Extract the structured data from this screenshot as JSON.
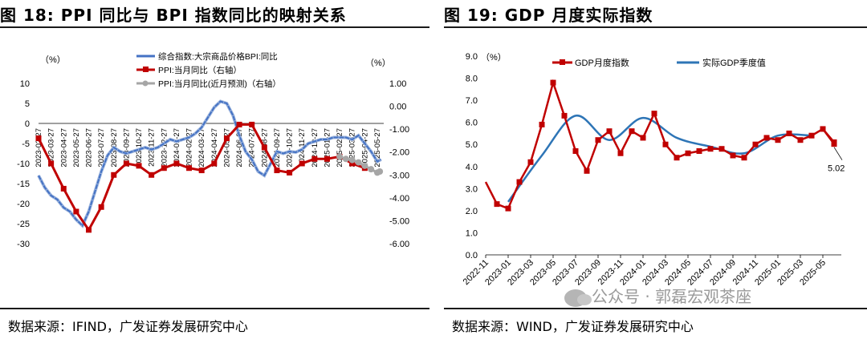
{
  "left_panel": {
    "title": "图 18:  PPI 同比与 BPI 指数同比的映射关系",
    "source": "数据来源：IFIND，广发证券发展研究中心",
    "chart_data": {
      "type": "line",
      "left_axis": {
        "unit": "（%）",
        "ylim": [
          -30,
          10
        ],
        "ticks": [
          10,
          5,
          0,
          -5,
          -10,
          -15,
          -20,
          -25,
          -30
        ]
      },
      "right_axis": {
        "unit": "（%）",
        "ylim": [
          -6,
          1
        ],
        "ticks": [
          "1.00",
          "0.00",
          "-1.00",
          "-2.00",
          "-3.00",
          "-4.00",
          "-5.00",
          "-6.00"
        ]
      },
      "x_labels": [
        "2023-02-27",
        "2023-03-27",
        "2023-04-27",
        "2023-05-27",
        "2023-06-27",
        "2023-07-27",
        "2023-08-27",
        "2023-09-27",
        "2023-10-27",
        "2023-11-27",
        "2023-12-27",
        "2024-01-27",
        "2024-02-27",
        "2024-03-27",
        "2024-04-27",
        "2024-05-27",
        "2024-06-27",
        "2024-07-27",
        "2024-08-27",
        "2024-09-27",
        "2024-10-27",
        "2024-11-27",
        "2024-12-27",
        "2025-01-27",
        "2025-02-27",
        "2025-03-27",
        "2025-04-27",
        "2025-05-27"
      ],
      "series": [
        {
          "name": "综合指数:大宗商品价格BPI:同比",
          "axis": "left",
          "color": "#4472c4",
          "x": [
            0,
            0.5,
            1,
            1.5,
            2,
            2.5,
            3,
            3.5,
            4,
            4.5,
            5,
            5.5,
            6,
            6.5,
            7,
            7.5,
            8,
            8.5,
            9,
            9.5,
            10,
            10.5,
            11,
            11.5,
            12,
            12.5,
            13,
            13.5,
            14,
            14.5,
            15,
            15.5,
            16,
            16.5,
            17,
            17.5,
            18,
            18.5,
            19,
            19.5,
            20,
            20.5,
            21,
            21.5,
            22,
            22.5,
            23,
            23.5,
            24,
            24.5,
            25,
            25.5,
            26,
            26.5,
            27,
            27.3
          ],
          "y": [
            -13,
            -16,
            -18,
            -19,
            -21,
            -22,
            -24,
            -25.5,
            -22,
            -17,
            -12,
            -8,
            -6,
            -7,
            -7.5,
            -7,
            -6.5,
            -6,
            -6.5,
            -6,
            -5,
            -4,
            -4.5,
            -4,
            -3.5,
            -2.5,
            -1,
            1.5,
            4,
            5.5,
            5,
            2,
            -3,
            -7,
            -9,
            -12,
            -13,
            -10,
            -7,
            -7.5,
            -7,
            -7.2,
            -6.5,
            -5,
            -4.5,
            -4,
            -4,
            -3.5,
            -3.5,
            -3.5,
            -4,
            -3,
            -5,
            -7,
            -9.5,
            -9
          ]
        },
        {
          "name": "PPI:当月同比（右轴）",
          "axis": "right",
          "color": "#c00000",
          "x": [
            0,
            1,
            2,
            3,
            4,
            5,
            6,
            7,
            8,
            9,
            10,
            11,
            12,
            13,
            14,
            15,
            16,
            17,
            18,
            19,
            20,
            21,
            22,
            23,
            24,
            25,
            26
          ],
          "y": [
            -1.4,
            -2.5,
            -3.6,
            -4.6,
            -5.4,
            -4.4,
            -3.0,
            -2.5,
            -2.6,
            -3.0,
            -2.7,
            -2.5,
            -2.7,
            -2.8,
            -2.5,
            -1.4,
            -0.8,
            -0.8,
            -1.8,
            -2.8,
            -2.9,
            -2.5,
            -2.3,
            -2.3,
            -2.2,
            -2.5,
            -2.7
          ]
        },
        {
          "name": "PPI:当月同比(近月预测)（右轴）",
          "axis": "right",
          "color": "#a6a6a6",
          "x": [
            24,
            24.5,
            25,
            25.5,
            26,
            26.5,
            27,
            27.2
          ],
          "y": [
            -2.2,
            -2.3,
            -2.35,
            -2.45,
            -2.6,
            -2.75,
            -2.9,
            -2.85
          ]
        }
      ]
    }
  },
  "right_panel": {
    "title": "图 19:  GDP 月度实际指数",
    "source": "数据来源：WIND，广发证券发展研究中心",
    "chart_data": {
      "type": "line",
      "y_unit": "（%）",
      "ylim": [
        0,
        9
      ],
      "y_ticks": [
        "9.0",
        "8.0",
        "7.0",
        "6.0",
        "5.0",
        "4.0",
        "3.0",
        "2.0",
        "1.0",
        "0.0"
      ],
      "x_labels": [
        "2022-11",
        "2023-01",
        "2023-03",
        "2023-05",
        "2023-07",
        "2023-09",
        "2023-11",
        "2024-01",
        "2024-03",
        "2024-05",
        "2024-07",
        "2024-09",
        "2024-11",
        "2025-01",
        "2025-03",
        "2025-05"
      ],
      "series": [
        {
          "name": "GDP月度指数",
          "color": "#c00000",
          "x": [
            0,
            1,
            2,
            3,
            4,
            5,
            6,
            7,
            8,
            9,
            10,
            11,
            12,
            13,
            14,
            15,
            16,
            17,
            18,
            19,
            20,
            21,
            22,
            23,
            24,
            25,
            26,
            27,
            28,
            29,
            30,
            31
          ],
          "y": [
            3.3,
            2.3,
            2.1,
            3.3,
            4.2,
            5.9,
            7.8,
            6.3,
            4.7,
            3.8,
            5.2,
            5.6,
            4.6,
            5.6,
            5.3,
            6.4,
            5.0,
            4.4,
            4.6,
            4.7,
            4.8,
            4.8,
            4.5,
            4.4,
            5.0,
            5.3,
            5.2,
            5.5,
            5.2,
            5.4,
            5.7,
            5.1
          ]
        },
        {
          "name": "实际GDP季度值",
          "color": "#2e75b6",
          "x": [
            2,
            5,
            8,
            11,
            14,
            17,
            20,
            23,
            26,
            29
          ],
          "y": [
            2.4,
            4.5,
            6.3,
            5.2,
            6.2,
            5.3,
            4.9,
            4.6,
            5.4,
            5.4
          ]
        }
      ],
      "annotation": {
        "label": "5.02",
        "value": 5.02
      }
    }
  },
  "watermark": "公众号 · 郭磊宏观茶座"
}
